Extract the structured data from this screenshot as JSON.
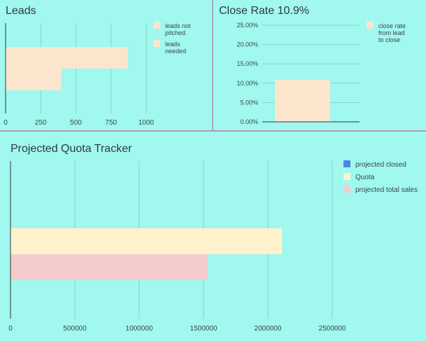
{
  "chart_data": [
    {
      "type": "bar",
      "orientation": "horizontal",
      "title": "Leads",
      "xlabel": "",
      "ylabel": "",
      "xlim": [
        0,
        1000
      ],
      "x_ticks": [
        0,
        250,
        500,
        750,
        1000
      ],
      "x_tick_labels": [
        "0",
        "250",
        "500",
        "750",
        "1000"
      ],
      "grid": true,
      "legend_position": "right",
      "series": [
        {
          "name": "leads not pitched",
          "values": [
            870
          ],
          "color": "#fce5cd"
        },
        {
          "name": "leads needed",
          "values": [
            395
          ],
          "color": "#fce5cd"
        }
      ]
    },
    {
      "type": "bar",
      "title": "Close Rate 10.9%",
      "xlabel": "",
      "ylabel": "",
      "ylim": [
        0,
        0.25
      ],
      "y_ticks": [
        0,
        0.05,
        0.1,
        0.15,
        0.2,
        0.25
      ],
      "y_tick_labels": [
        "0.00%",
        "5.00%",
        "10.00%",
        "15.00%",
        "20.00%",
        "25.00%"
      ],
      "grid": true,
      "legend_position": "right",
      "series": [
        {
          "name": "close rate from lead to close",
          "values": [
            0.109
          ],
          "color": "#fce5cd"
        }
      ]
    },
    {
      "type": "bar",
      "orientation": "horizontal",
      "title": "Projected Quota Tracker",
      "xlabel": "",
      "ylabel": "",
      "xlim": [
        0,
        2500000
      ],
      "x_ticks": [
        0,
        500000,
        1000000,
        1500000,
        2000000,
        2500000
      ],
      "x_tick_labels": [
        "0",
        "500000",
        "1000000",
        "1500000",
        "2000000",
        "2500000"
      ],
      "grid": true,
      "legend_position": "right",
      "series": [
        {
          "name": "projected closed",
          "values": [
            0
          ],
          "color": "#4a86e8"
        },
        {
          "name": "Quota",
          "values": [
            2110000
          ],
          "color": "#fff2cc"
        },
        {
          "name": "projected total sales",
          "values": [
            1530000
          ],
          "color": "#f4cccc"
        }
      ]
    }
  ]
}
